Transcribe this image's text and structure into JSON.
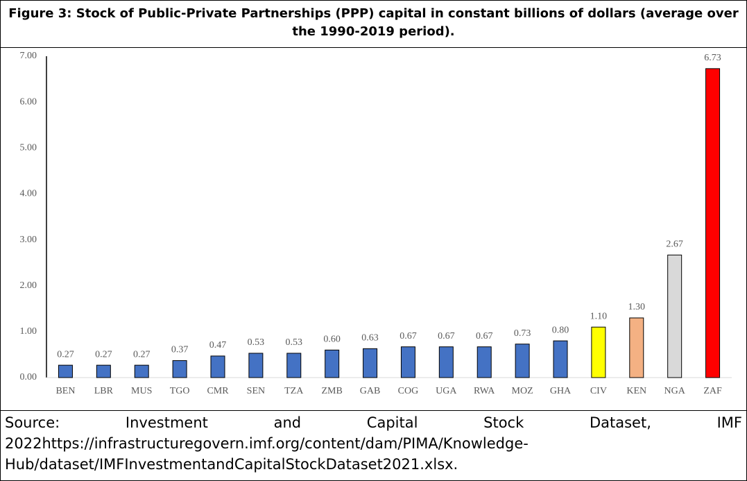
{
  "title": "Figure 3: Stock of Public-Private Partnerships (PPP) capital in constant billions of dollars (average over the 1990-2019 period).",
  "chart_data": {
    "type": "bar",
    "categories": [
      "BEN",
      "LBR",
      "MUS",
      "TGO",
      "CMR",
      "SEN",
      "TZA",
      "ZMB",
      "GAB",
      "COG",
      "UGA",
      "RWA",
      "MOZ",
      "GHA",
      "CIV",
      "KEN",
      "NGA",
      "ZAF"
    ],
    "values": [
      0.27,
      0.27,
      0.27,
      0.37,
      0.47,
      0.53,
      0.53,
      0.6,
      0.63,
      0.67,
      0.67,
      0.67,
      0.73,
      0.8,
      1.1,
      1.3,
      2.67,
      6.73
    ],
    "value_labels": [
      "0.27",
      "0.27",
      "0.27",
      "0.37",
      "0.47",
      "0.53",
      "0.53",
      "0.60",
      "0.63",
      "0.67",
      "0.67",
      "0.67",
      "0.73",
      "0.80",
      "1.10",
      "1.30",
      "2.67",
      "6.73"
    ],
    "colors": [
      "#4472c4",
      "#4472c4",
      "#4472c4",
      "#4472c4",
      "#4472c4",
      "#4472c4",
      "#4472c4",
      "#4472c4",
      "#4472c4",
      "#4472c4",
      "#4472c4",
      "#4472c4",
      "#4472c4",
      "#4472c4",
      "#ffff00",
      "#f4b183",
      "#d9d9d9",
      "#ff0000"
    ],
    "ylim": [
      0,
      7
    ],
    "yticks": [
      {
        "value": 0,
        "label": "0.00"
      },
      {
        "value": 1,
        "label": "1.00"
      },
      {
        "value": 2,
        "label": "2.00"
      },
      {
        "value": 3,
        "label": "3.00"
      },
      {
        "value": 4,
        "label": "4.00"
      },
      {
        "value": 5,
        "label": "5.00"
      },
      {
        "value": 6,
        "label": "6.00"
      },
      {
        "value": 7,
        "label": "7.00"
      }
    ],
    "grid": false
  },
  "source": "Source: Investment and Capital Stock Dataset, IMF 2022https://infrastructuregovern.imf.org/content/dam/PIMA/Knowledge-Hub/dataset/IMFInvestmentandCapitalStockDataset2021.xlsx."
}
